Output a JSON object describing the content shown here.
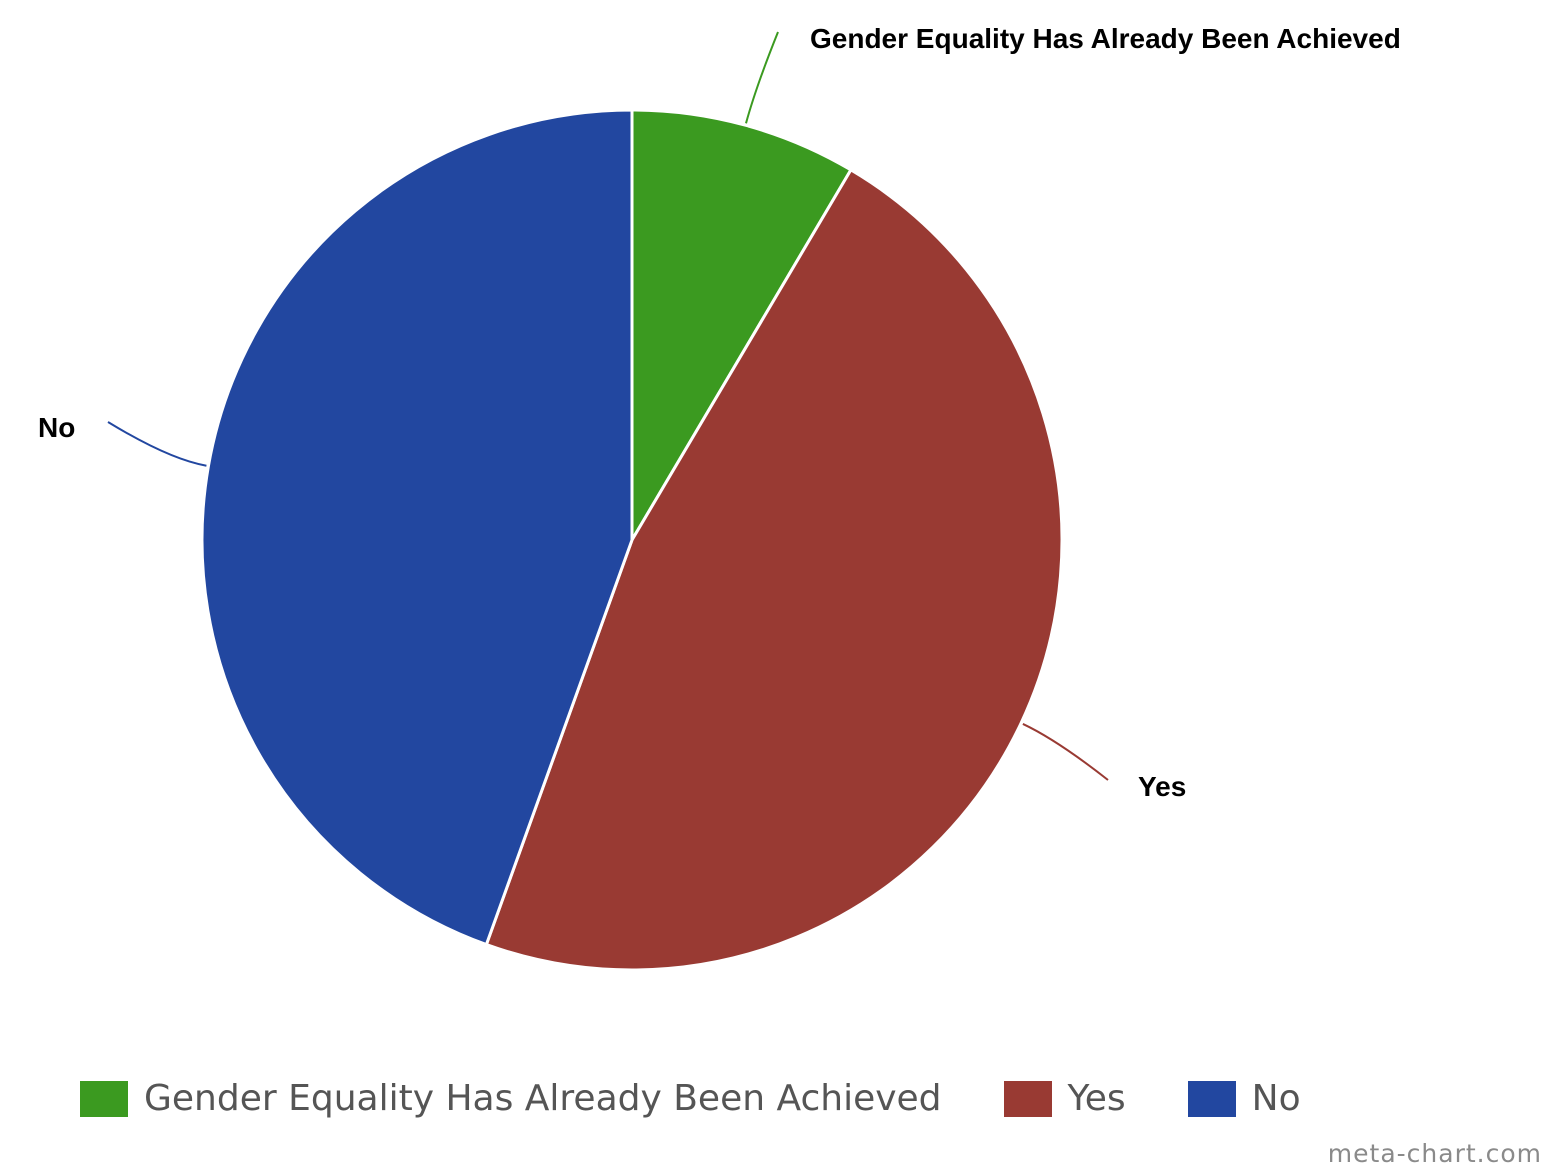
{
  "chart_data": {
    "type": "pie",
    "categories": [
      "Gender Equality Has Already Been Achieved",
      "Yes",
      "No"
    ],
    "values": [
      8.5,
      47,
      44.5
    ],
    "colors": [
      "#3b9a20",
      "#993a33",
      "#2247a0"
    ],
    "start": "12 o'clock",
    "direction": "clockwise",
    "legend": "bottom",
    "title": ""
  },
  "slice_labels": [
    "Gender Equality Has Already Been Achieved",
    "Yes",
    "No"
  ],
  "legend_items": [
    {
      "label": "Gender Equality Has Already Been Achieved",
      "color": "#3b9a20"
    },
    {
      "label": "Yes",
      "color": "#993a33"
    },
    {
      "label": "No",
      "color": "#2247a0"
    }
  ],
  "credit": "meta-chart.com"
}
